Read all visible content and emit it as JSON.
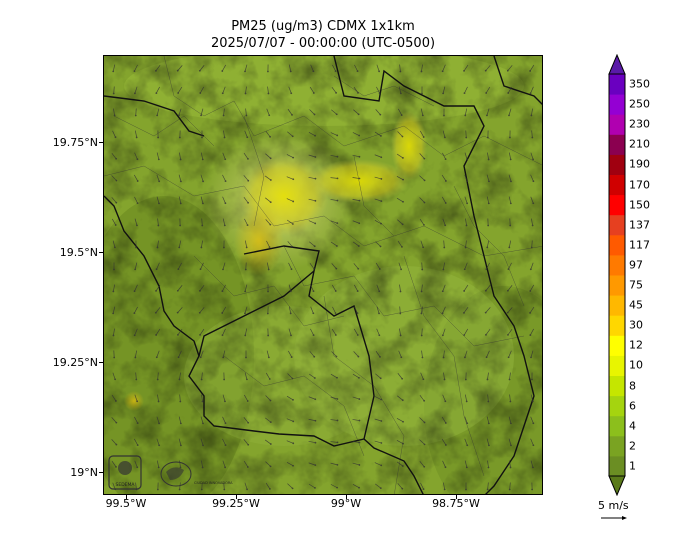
{
  "title": {
    "line1": "PM25 (ug/m3) CDMX 1x1km",
    "line2": "2025/07/07 - 00:00:00 (UTC-0500)"
  },
  "axes": {
    "lat_labels": [
      "19.75°N",
      "19.5°N",
      "19.25°N",
      "19°N"
    ],
    "lat_values": [
      19.75,
      19.5,
      19.25,
      19.0
    ],
    "lon_labels": [
      "99.5°W",
      "99.25°W",
      "99°W",
      "98.75°W"
    ],
    "lon_values": [
      -99.5,
      -99.25,
      -99.0,
      -98.75
    ]
  },
  "colorbar": {
    "levels": [
      "1",
      "2",
      "4",
      "6",
      "8",
      "10",
      "12",
      "30",
      "45",
      "75",
      "97",
      "117",
      "137",
      "150",
      "170",
      "190",
      "210",
      "230",
      "250",
      "350"
    ],
    "colors": [
      "#6b8e23",
      "#7aa322",
      "#8cbf1c",
      "#a5d40f",
      "#c5e600",
      "#e8f500",
      "#ffff00",
      "#ffd700",
      "#ffb800",
      "#ff9900",
      "#ff7a00",
      "#ff5a00",
      "#e64020",
      "#ff0000",
      "#d00000",
      "#a00010",
      "#8b0050",
      "#b000b0",
      "#9400d3",
      "#6a00c0"
    ],
    "under_color": "#5a7a1a",
    "over_color": "#5a1aa8"
  },
  "wind_reference": {
    "label": "5 m/s"
  },
  "logos": {
    "left": "SEDEMA",
    "right": "CIUDAD INNOVADORA"
  }
}
